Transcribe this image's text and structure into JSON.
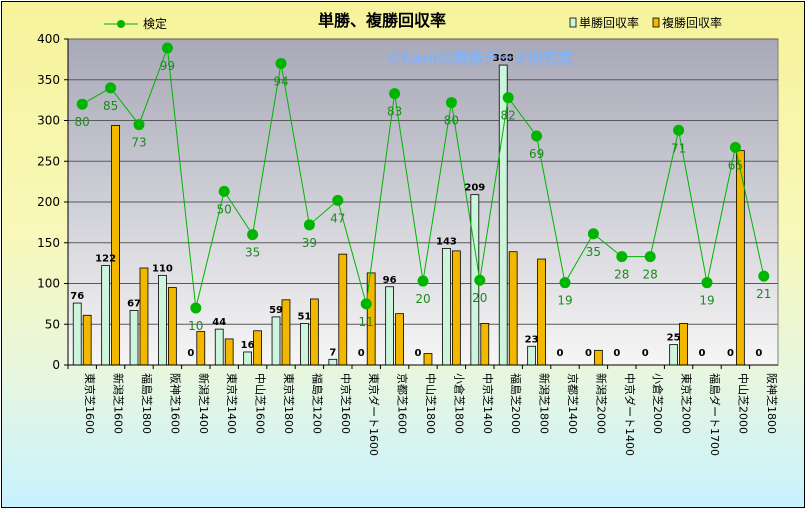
{
  "chart_data": {
    "type": "bar",
    "title": "単勝、複勝回収率",
    "watermark": "©Caniの競馬データ研究室",
    "categories": [
      "東京芝1600",
      "新潟芝1600",
      "福島芝1800",
      "阪神芝1600",
      "新潟芝1400",
      "東京芝1400",
      "中山芝1600",
      "東京芝1800",
      "福島芝1200",
      "中京芝1600",
      "東京ダート1600",
      "京都芝1600",
      "中山芝1800",
      "小倉芝1800",
      "中京芝1400",
      "福島芝2000",
      "新潟芝1800",
      "京都芝1400",
      "新潟芝2000",
      "中京ダート1400",
      "小倉芝2000",
      "東京芝2000",
      "福島ダート1700",
      "中山芝2000",
      "阪神芝1800"
    ],
    "ylim": [
      0,
      400
    ],
    "yticks": [
      0,
      50,
      100,
      150,
      200,
      250,
      300,
      350,
      400
    ],
    "grid": true,
    "legend_position": "top",
    "series": [
      {
        "name": "単勝回収率",
        "kind": "bar",
        "color": "#ccf5dc",
        "values": [
          76,
          122,
          67,
          110,
          0,
          44,
          16,
          59,
          51,
          7,
          0,
          96,
          0,
          143,
          209,
          368,
          23,
          0,
          0,
          0,
          0,
          25,
          0,
          0,
          0
        ]
      },
      {
        "name": "複勝回収率",
        "kind": "bar",
        "color": "#f2b800",
        "values": [
          61,
          294,
          119,
          95,
          41,
          32,
          42,
          80,
          81,
          136,
          113,
          63,
          14,
          140,
          51,
          139,
          130,
          0,
          18,
          0,
          0,
          51,
          0,
          263,
          0
        ]
      },
      {
        "name": "検定",
        "kind": "line",
        "color": "#00b400",
        "values": [
          320,
          340,
          295,
          389,
          70,
          213,
          160,
          370,
          172,
          202,
          75,
          333,
          103,
          322,
          104,
          328,
          281,
          101,
          161,
          133,
          133,
          288,
          101,
          267,
          109
        ],
        "labels": [
          80,
          85,
          73,
          99,
          10,
          50,
          35,
          94,
          39,
          47,
          11,
          83,
          20,
          80,
          20,
          82,
          69,
          19,
          35,
          28,
          28,
          71,
          19,
          65,
          21
        ]
      }
    ]
  }
}
